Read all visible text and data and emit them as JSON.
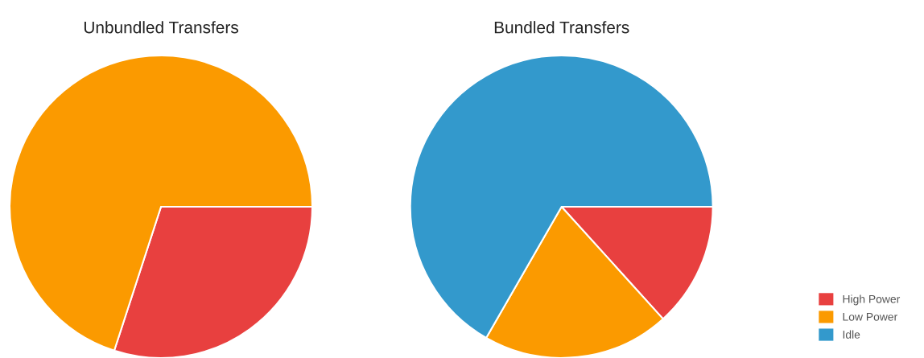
{
  "chart_data": {
    "type": "pie",
    "categories": [
      "High Power",
      "Low Power",
      "Idle"
    ],
    "colors": [
      "#e8403f",
      "#fb9a00",
      "#3399cc"
    ],
    "legend": "bottom right",
    "series": [
      {
        "name": "Unbundled Transfers",
        "values": [
          30,
          70,
          0
        ]
      },
      {
        "name": "Bundled Transfers",
        "values": [
          13.3,
          20,
          66.7
        ]
      }
    ]
  }
}
